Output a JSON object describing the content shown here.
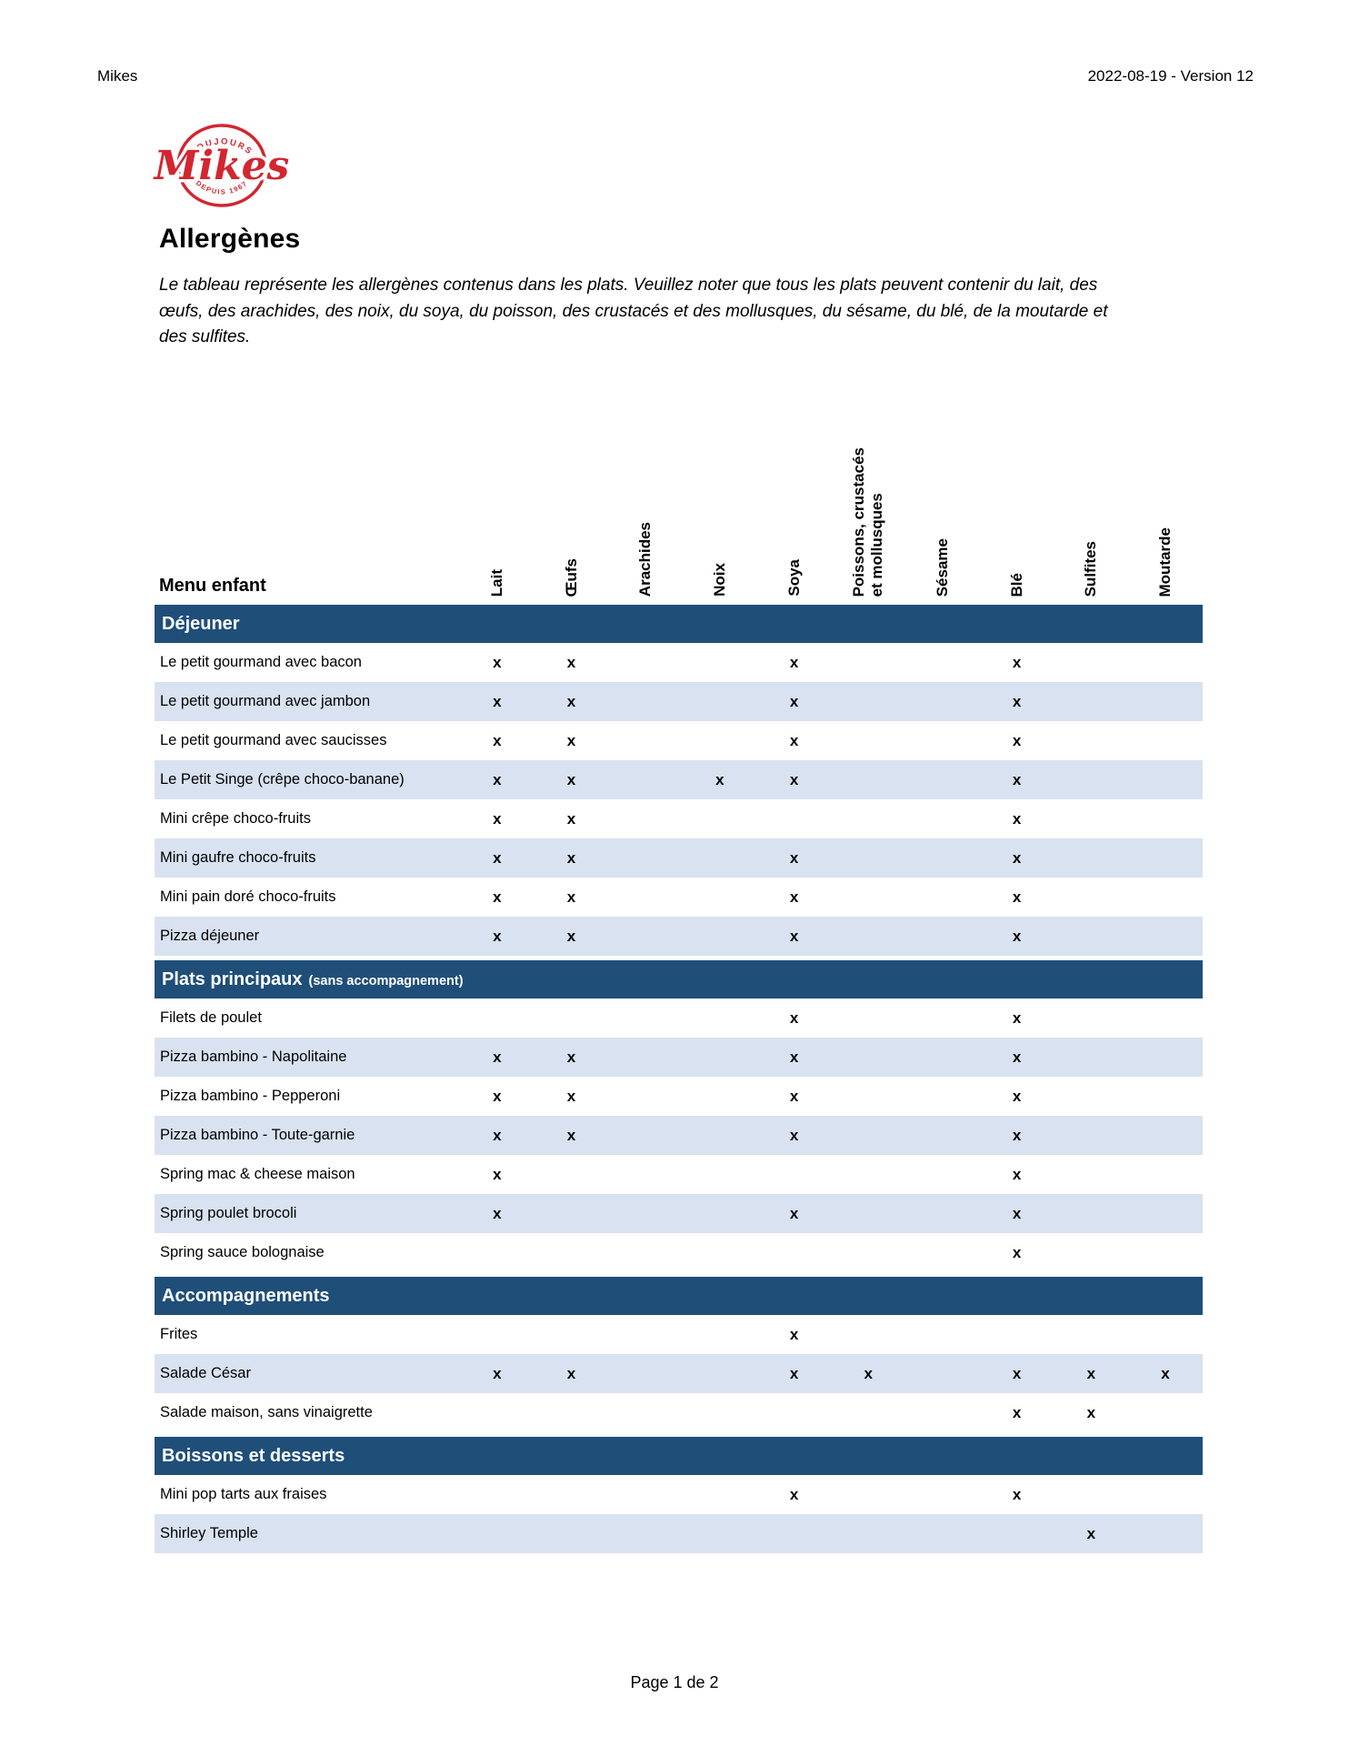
{
  "page_header": {
    "left": "Mikes",
    "right": "2022-08-19 - Version 12"
  },
  "logo": {
    "top_text": "TOUJOURS",
    "name": "Mikes",
    "bottom_text": "DEPUIS 1967",
    "color": "#D22630"
  },
  "title": "Allergènes",
  "intro": "Le tableau représente les allergènes contenus dans les plats.  Veuillez noter que tous les plats peuvent contenir du lait, des œufs, des arachides, des noix, du soya, du poisson, des crustacés et des mollusques, du sésame, du blé, de la moutarde et des sulfites.",
  "table": {
    "row_header_label": "Menu enfant",
    "mark": "x",
    "colors": {
      "section_bar": "#1F4E79",
      "stripe": "#D9E2F0"
    },
    "columns": [
      "Lait",
      "Œufs",
      "Arachides",
      "Noix",
      "Soya",
      "Poissons, crustacés\net mollusques",
      "Sésame",
      "Blé",
      "Sulfites",
      "Moutarde"
    ],
    "sections": [
      {
        "label": "Déjeuner",
        "label_suffix": "",
        "rows": [
          {
            "label": "Le petit gourmand avec bacon",
            "marks": [
              1,
              1,
              0,
              0,
              1,
              0,
              0,
              1,
              0,
              0
            ]
          },
          {
            "label": "Le petit gourmand avec jambon",
            "marks": [
              1,
              1,
              0,
              0,
              1,
              0,
              0,
              1,
              0,
              0
            ]
          },
          {
            "label": "Le petit gourmand avec saucisses",
            "marks": [
              1,
              1,
              0,
              0,
              1,
              0,
              0,
              1,
              0,
              0
            ]
          },
          {
            "label": "Le Petit Singe (crêpe choco-banane)",
            "marks": [
              1,
              1,
              0,
              1,
              1,
              0,
              0,
              1,
              0,
              0
            ]
          },
          {
            "label": "Mini crêpe choco-fruits",
            "marks": [
              1,
              1,
              0,
              0,
              0,
              0,
              0,
              1,
              0,
              0
            ]
          },
          {
            "label": "Mini gaufre choco-fruits",
            "marks": [
              1,
              1,
              0,
              0,
              1,
              0,
              0,
              1,
              0,
              0
            ]
          },
          {
            "label": "Mini pain doré choco-fruits",
            "marks": [
              1,
              1,
              0,
              0,
              1,
              0,
              0,
              1,
              0,
              0
            ]
          },
          {
            "label": "Pizza déjeuner",
            "marks": [
              1,
              1,
              0,
              0,
              1,
              0,
              0,
              1,
              0,
              0
            ]
          }
        ]
      },
      {
        "label": "Plats principaux",
        "label_suffix": "(sans accompagnement)",
        "rows": [
          {
            "label": "Filets de poulet",
            "marks": [
              0,
              0,
              0,
              0,
              1,
              0,
              0,
              1,
              0,
              0
            ]
          },
          {
            "label": "Pizza bambino - Napolitaine",
            "marks": [
              1,
              1,
              0,
              0,
              1,
              0,
              0,
              1,
              0,
              0
            ]
          },
          {
            "label": "Pizza bambino - Pepperoni",
            "marks": [
              1,
              1,
              0,
              0,
              1,
              0,
              0,
              1,
              0,
              0
            ]
          },
          {
            "label": "Pizza bambino - Toute-garnie",
            "marks": [
              1,
              1,
              0,
              0,
              1,
              0,
              0,
              1,
              0,
              0
            ]
          },
          {
            "label": "Spring mac & cheese maison",
            "marks": [
              1,
              0,
              0,
              0,
              0,
              0,
              0,
              1,
              0,
              0
            ]
          },
          {
            "label": "Spring poulet brocoli",
            "marks": [
              1,
              0,
              0,
              0,
              1,
              0,
              0,
              1,
              0,
              0
            ]
          },
          {
            "label": "Spring sauce bolognaise",
            "marks": [
              0,
              0,
              0,
              0,
              0,
              0,
              0,
              1,
              0,
              0
            ]
          }
        ]
      },
      {
        "label": "Accompagnements",
        "label_suffix": "",
        "rows": [
          {
            "label": "Frites",
            "marks": [
              0,
              0,
              0,
              0,
              1,
              0,
              0,
              0,
              0,
              0
            ]
          },
          {
            "label": "Salade César",
            "marks": [
              1,
              1,
              0,
              0,
              1,
              1,
              0,
              1,
              1,
              1
            ]
          },
          {
            "label": "Salade maison, sans vinaigrette",
            "marks": [
              0,
              0,
              0,
              0,
              0,
              0,
              0,
              1,
              1,
              0
            ]
          }
        ]
      },
      {
        "label": "Boissons et desserts",
        "label_suffix": "",
        "rows": [
          {
            "label": "Mini pop tarts aux fraises",
            "marks": [
              0,
              0,
              0,
              0,
              1,
              0,
              0,
              1,
              0,
              0
            ]
          },
          {
            "label": "Shirley Temple",
            "marks": [
              0,
              0,
              0,
              0,
              0,
              0,
              0,
              0,
              1,
              0
            ]
          }
        ]
      }
    ]
  },
  "footer": {
    "page_label": "Page 1 de 2"
  }
}
